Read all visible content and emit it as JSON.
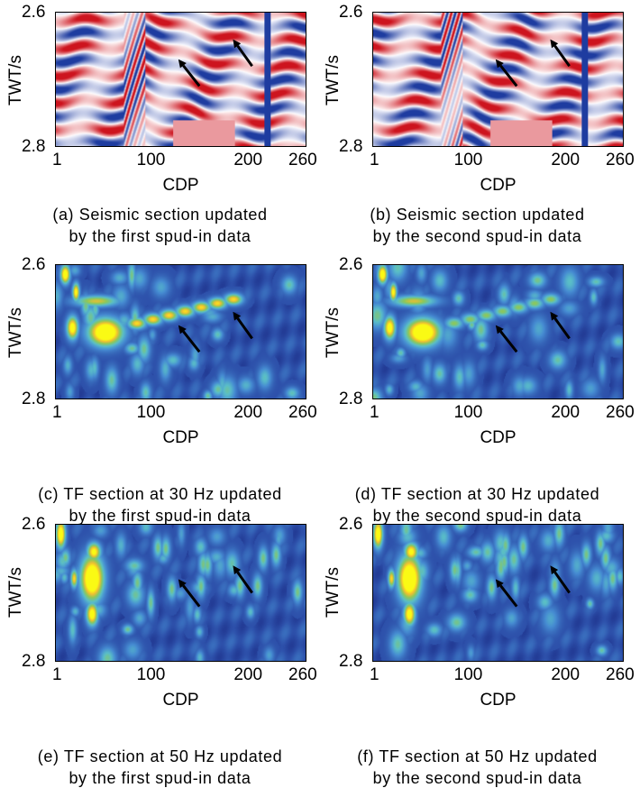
{
  "chart_data": [
    {
      "id": "a",
      "type": "heatmap",
      "colormap": "seismic-red-white-blue",
      "caption": [
        "(a) Seismic section updated",
        "by the first spud-in data"
      ],
      "xlabel": "CDP",
      "ylabel": "TWT/s",
      "xticks": [
        "1",
        "100",
        "200",
        "260"
      ],
      "xtick_values": [
        1,
        100,
        200,
        260
      ],
      "yticks": [
        "2.6",
        "2.8"
      ],
      "xlim": [
        1,
        260
      ],
      "ylim": [
        2.6,
        2.8
      ],
      "arrows": [
        {
          "tail": [
            150,
            2.71
          ],
          "head": [
            128,
            2.67
          ]
        },
        {
          "tail": [
            205,
            2.68
          ],
          "head": [
            185,
            2.64
          ]
        }
      ]
    },
    {
      "id": "b",
      "type": "heatmap",
      "colormap": "seismic-red-white-blue",
      "caption": [
        "(b) Seismic section updated",
        "by the second spud-in data"
      ],
      "xlabel": "CDP",
      "ylabel": "TWT/s",
      "xticks": [
        "1",
        "100",
        "200",
        "260"
      ],
      "xtick_values": [
        1,
        100,
        200,
        260
      ],
      "yticks": [
        "2.6",
        "2.8"
      ],
      "xlim": [
        1,
        260
      ],
      "ylim": [
        2.6,
        2.8
      ],
      "arrows": [
        {
          "tail": [
            150,
            2.71
          ],
          "head": [
            128,
            2.67
          ]
        },
        {
          "tail": [
            205,
            2.68
          ],
          "head": [
            185,
            2.64
          ]
        }
      ]
    },
    {
      "id": "c",
      "type": "heatmap",
      "colormap": "parula",
      "caption": [
        "(c) TF section at 30 Hz updated",
        "by the first spud-in data"
      ],
      "xlabel": "CDP",
      "ylabel": "TWT/s",
      "xticks": [
        "1",
        "100",
        "200",
        "260"
      ],
      "xtick_values": [
        1,
        100,
        200,
        260
      ],
      "yticks": [
        "2.6",
        "2.8"
      ],
      "xlim": [
        1,
        260
      ],
      "ylim": [
        2.6,
        2.8
      ],
      "arrows": [
        {
          "tail": [
            150,
            2.73
          ],
          "head": [
            128,
            2.69
          ]
        },
        {
          "tail": [
            205,
            2.71
          ],
          "head": [
            185,
            2.67
          ]
        }
      ]
    },
    {
      "id": "d",
      "type": "heatmap",
      "colormap": "parula",
      "caption": [
        "(d) TF section at 30 Hz updated",
        "by the second spud-in data"
      ],
      "xlabel": "CDP",
      "ylabel": "TWT/s",
      "xticks": [
        "1",
        "100",
        "200",
        "260"
      ],
      "xtick_values": [
        1,
        100,
        200,
        260
      ],
      "yticks": [
        "2.6",
        "2.8"
      ],
      "xlim": [
        1,
        260
      ],
      "ylim": [
        2.6,
        2.8
      ],
      "arrows": [
        {
          "tail": [
            150,
            2.73
          ],
          "head": [
            128,
            2.69
          ]
        },
        {
          "tail": [
            205,
            2.71
          ],
          "head": [
            185,
            2.67
          ]
        }
      ]
    },
    {
      "id": "e",
      "type": "heatmap",
      "colormap": "parula",
      "caption": [
        "(e) TF section at 50 Hz updated",
        "by the first spud-in data"
      ],
      "xlabel": "CDP",
      "ylabel": "TWT/s",
      "xticks": [
        "1",
        "100",
        "200",
        "260"
      ],
      "xtick_values": [
        1,
        100,
        200,
        260
      ],
      "yticks": [
        "2.6",
        "2.8"
      ],
      "xlim": [
        1,
        260
      ],
      "ylim": [
        2.6,
        2.8
      ],
      "arrows": [
        {
          "tail": [
            150,
            2.72
          ],
          "head": [
            128,
            2.68
          ]
        },
        {
          "tail": [
            205,
            2.7
          ],
          "head": [
            185,
            2.66
          ]
        }
      ]
    },
    {
      "id": "f",
      "type": "heatmap",
      "colormap": "parula",
      "caption": [
        "(f) TF section at 50 Hz updated",
        "by the second spud-in data"
      ],
      "xlabel": "CDP",
      "ylabel": "TWT/s",
      "xticks": [
        "1",
        "100",
        "200",
        "260"
      ],
      "xtick_values": [
        1,
        100,
        200,
        260
      ],
      "yticks": [
        "2.6",
        "2.8"
      ],
      "xlim": [
        1,
        260
      ],
      "ylim": [
        2.6,
        2.8
      ],
      "arrows": [
        {
          "tail": [
            150,
            2.72
          ],
          "head": [
            128,
            2.68
          ]
        },
        {
          "tail": [
            205,
            2.7
          ],
          "head": [
            185,
            2.66
          ]
        }
      ]
    }
  ]
}
